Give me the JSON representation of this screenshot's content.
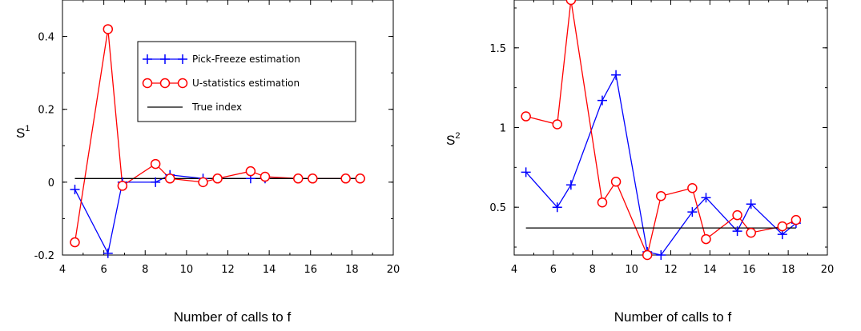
{
  "chart_data": [
    {
      "type": "line",
      "xlabel": "Number of calls to f",
      "ylabel": "S",
      "ylabel_sup": "1",
      "xlim": [
        4,
        20
      ],
      "ylim": [
        -0.2,
        0.5
      ],
      "xticks": [
        4,
        6,
        8,
        10,
        12,
        14,
        16,
        18,
        20
      ],
      "yticks": [
        -0.2,
        0,
        0.2,
        0.4
      ],
      "ytick_labels": [
        "-0.2",
        "0",
        "0.2",
        "0.4"
      ],
      "grid": false,
      "legend_position": "top-right",
      "series": [
        {
          "name": "Pick-Freeze estimation",
          "color": "#0000ff",
          "marker": "plus",
          "x": [
            4.6,
            6.2,
            6.9,
            8.5,
            9.2,
            10.8,
            11.5,
            13.1,
            13.8,
            15.4,
            16.1,
            17.7,
            18.4
          ],
          "y": [
            -0.02,
            -0.195,
            0.0,
            0.0,
            0.02,
            0.01,
            0.01,
            0.01,
            0.01,
            0.01,
            0.01,
            0.01,
            0.01
          ]
        },
        {
          "name": "U-statistics estimation",
          "color": "#ff0000",
          "marker": "circle",
          "x": [
            4.6,
            6.2,
            6.9,
            8.5,
            9.2,
            10.8,
            11.5,
            13.1,
            13.8,
            15.4,
            16.1,
            17.7,
            18.4
          ],
          "y": [
            -0.165,
            0.42,
            -0.01,
            0.05,
            0.01,
            0.0,
            0.01,
            0.03,
            0.015,
            0.01,
            0.01,
            0.01,
            0.01
          ]
        },
        {
          "name": "True index",
          "color": "#000000",
          "marker": "none",
          "x": [
            4.6,
            18.4
          ],
          "y": [
            0.01,
            0.01
          ]
        }
      ]
    },
    {
      "type": "line",
      "xlabel": "Number of calls to f",
      "ylabel": "S",
      "ylabel_sup": "2",
      "xlim": [
        4,
        20
      ],
      "ylim": [
        0.2,
        1.8
      ],
      "xticks": [
        4,
        6,
        8,
        10,
        12,
        14,
        16,
        18,
        20
      ],
      "yticks": [
        0.5,
        1.0,
        1.5
      ],
      "ytick_labels": [
        "0.5",
        "1",
        "1.5"
      ],
      "grid": false,
      "series": [
        {
          "color": "#0000ff",
          "marker": "plus",
          "x": [
            4.6,
            6.2,
            6.9,
            8.5,
            9.2,
            10.8,
            11.5,
            13.1,
            13.8,
            15.4,
            16.1,
            17.7,
            18.4
          ],
          "y": [
            0.72,
            0.5,
            0.64,
            1.17,
            1.33,
            0.22,
            0.2,
            0.47,
            0.56,
            0.35,
            0.52,
            0.33,
            0.4
          ]
        },
        {
          "color": "#ff0000",
          "marker": "circle",
          "x": [
            4.6,
            6.2,
            6.9,
            8.5,
            9.2,
            10.8,
            11.5,
            13.1,
            13.8,
            15.4,
            16.1,
            17.7,
            18.4
          ],
          "y": [
            1.07,
            1.02,
            1.8,
            0.53,
            0.66,
            0.2,
            0.57,
            0.62,
            0.3,
            0.45,
            0.34,
            0.38,
            0.42
          ]
        },
        {
          "color": "#000000",
          "marker": "none",
          "x": [
            4.6,
            18.4
          ],
          "y": [
            0.37,
            0.37
          ]
        }
      ]
    }
  ]
}
